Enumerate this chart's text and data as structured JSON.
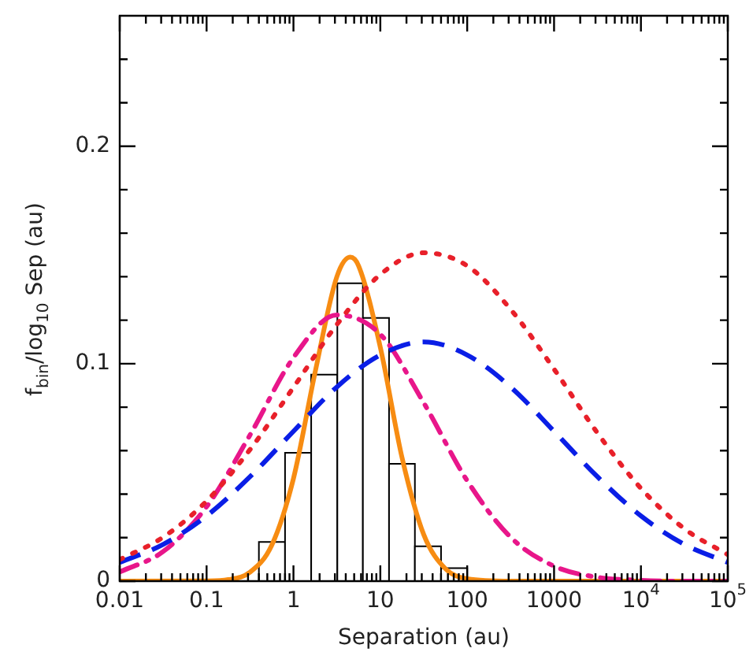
{
  "chart_data": {
    "type": "histogram",
    "xlabel": "Separation (au)",
    "ylabel": "f$_{bin}$/log$_{10}$ Sep (au)",
    "log": "x",
    "grid": false,
    "legend": false,
    "xlim": [
      0.01,
      100000
    ],
    "xticks": [
      0.01,
      {
        "value": 0.02,
        "label": null
      },
      {
        "value": 0.03,
        "label": null
      },
      {
        "value": 0.04,
        "label": null
      },
      {
        "value": 0.05,
        "label": null
      },
      {
        "value": 0.06,
        "label": null
      },
      {
        "value": 0.07,
        "label": null
      },
      {
        "value": 0.08,
        "label": null
      },
      {
        "value": 0.09,
        "label": null
      },
      0.1,
      {
        "value": 0.2,
        "label": null
      },
      {
        "value": 0.3,
        "label": null
      },
      {
        "value": 0.4,
        "label": null
      },
      {
        "value": 0.5,
        "label": null
      },
      {
        "value": 0.6,
        "label": null
      },
      {
        "value": 0.7,
        "label": null
      },
      {
        "value": 0.8,
        "label": null
      },
      {
        "value": 0.9,
        "label": null
      },
      1,
      {
        "value": 2,
        "label": null
      },
      {
        "value": 3,
        "label": null
      },
      {
        "value": 4,
        "label": null
      },
      {
        "value": 5,
        "label": null
      },
      {
        "value": 6,
        "label": null
      },
      {
        "value": 7,
        "label": null
      },
      {
        "value": 8,
        "label": null
      },
      {
        "value": 9,
        "label": null
      },
      10,
      {
        "value": 20,
        "label": null
      },
      {
        "value": 30,
        "label": null
      },
      {
        "value": 40,
        "label": null
      },
      {
        "value": 50,
        "label": null
      },
      {
        "value": 60,
        "label": null
      },
      {
        "value": 70,
        "label": null
      },
      {
        "value": 80,
        "label": null
      },
      {
        "value": 90,
        "label": null
      },
      100,
      {
        "value": 200,
        "label": null
      },
      {
        "value": 300,
        "label": null
      },
      {
        "value": 400,
        "label": null
      },
      {
        "value": 500,
        "label": null
      },
      {
        "value": 600,
        "label": null
      },
      {
        "value": 700,
        "label": null
      },
      {
        "value": 800,
        "label": null
      },
      {
        "value": 900,
        "label": null
      },
      1000,
      {
        "value": 2000,
        "label": null
      },
      {
        "value": 3000,
        "label": null
      },
      {
        "value": 4000,
        "label": null
      },
      {
        "value": 5000,
        "label": null
      },
      {
        "value": 6000,
        "label": null
      },
      {
        "value": 7000,
        "label": null
      },
      {
        "value": 8000,
        "label": null
      },
      {
        "value": 9000,
        "label": null
      },
      {
        "value": 10000,
        "label": "10$^{4}$"
      },
      {
        "value": 20000,
        "label": null
      },
      {
        "value": 30000,
        "label": null
      },
      {
        "value": 40000,
        "label": null
      },
      {
        "value": 50000,
        "label": null
      },
      {
        "value": 60000,
        "label": null
      },
      {
        "value": 70000,
        "label": null
      },
      {
        "value": 80000,
        "label": null
      },
      {
        "value": 90000,
        "label": null
      },
      {
        "value": 100000,
        "label": "10$^{5}$"
      }
    ],
    "ylim": [
      0,
      0.26
    ],
    "yticks": [
      0,
      {
        "value": 0.02,
        "label": null
      },
      {
        "value": 0.04,
        "label": null
      },
      {
        "value": 0.06,
        "label": null
      },
      {
        "value": 0.08,
        "label": null
      },
      0.1,
      {
        "value": 0.12,
        "label": null
      },
      {
        "value": 0.14,
        "label": null
      },
      {
        "value": 0.16,
        "label": null
      },
      {
        "value": 0.18,
        "label": null
      },
      0.2,
      {
        "value": 0.22,
        "label": null
      },
      {
        "value": 0.24,
        "label": null
      }
    ],
    "series": [
      {
        "color": "#000000",
        "bins": [
          0.4,
          0.8,
          1.6,
          3.2,
          6.3,
          12.6,
          25,
          50,
          100
        ],
        "values": [
          0.018,
          0.059,
          0.095,
          0.137,
          0.121,
          0.054,
          0.016,
          0.006
        ]
      },
      {
        "type": "line",
        "color": "#e8202a",
        "line_style": "dotted",
        "x": [
          0.01,
          0.0316,
          0.1,
          0.316,
          1,
          3.16,
          10,
          31.6,
          100,
          316,
          1000,
          3160,
          10000,
          31600,
          100000
        ],
        "values": [
          0.0099,
          0.0202,
          0.0368,
          0.0605,
          0.0891,
          0.118,
          0.141,
          0.151,
          0.145,
          0.125,
          0.0975,
          0.0681,
          0.0427,
          0.0241,
          0.0122
        ]
      },
      {
        "type": "line",
        "color": "#0a1ee6",
        "line_style": "dashed",
        "x": [
          0.01,
          0.0316,
          0.1,
          0.316,
          1,
          3.16,
          10,
          31.6,
          100,
          316,
          1000,
          3160,
          10000,
          31600,
          100000
        ],
        "values": [
          0.0086,
          0.0169,
          0.03,
          0.048,
          0.0689,
          0.0893,
          0.104,
          0.11,
          0.104,
          0.0893,
          0.0689,
          0.048,
          0.03,
          0.0169,
          0.0086
        ]
      },
      {
        "type": "line",
        "color": "#e8168a",
        "line_style": "dashdot",
        "x": [
          0.01,
          0.0316,
          0.1,
          0.316,
          1,
          3.16,
          10,
          31.6,
          100,
          316,
          1000,
          3160,
          10000,
          31600,
          100000
        ],
        "values": [
          0.0042,
          0.0136,
          0.0342,
          0.0672,
          0.1028,
          0.1224,
          0.1135,
          0.082,
          0.0462,
          0.0202,
          0.0069,
          0.0018,
          0.0004,
          0,
          0
        ]
      },
      {
        "type": "line",
        "color": "#f78c12",
        "line_style": "solid",
        "x": [
          0.01,
          0.1,
          0.178,
          0.316,
          0.562,
          1,
          1.78,
          3.16,
          4.5,
          5.62,
          10,
          17.8,
          31.6,
          56.2,
          100,
          316,
          100000
        ],
        "values": [
          0,
          0.0001,
          0.0007,
          0.0041,
          0.0165,
          0.0472,
          0.0963,
          0.14,
          0.149,
          0.145,
          0.1075,
          0.0567,
          0.0214,
          0.0057,
          0.0011,
          0,
          0
        ]
      }
    ]
  }
}
